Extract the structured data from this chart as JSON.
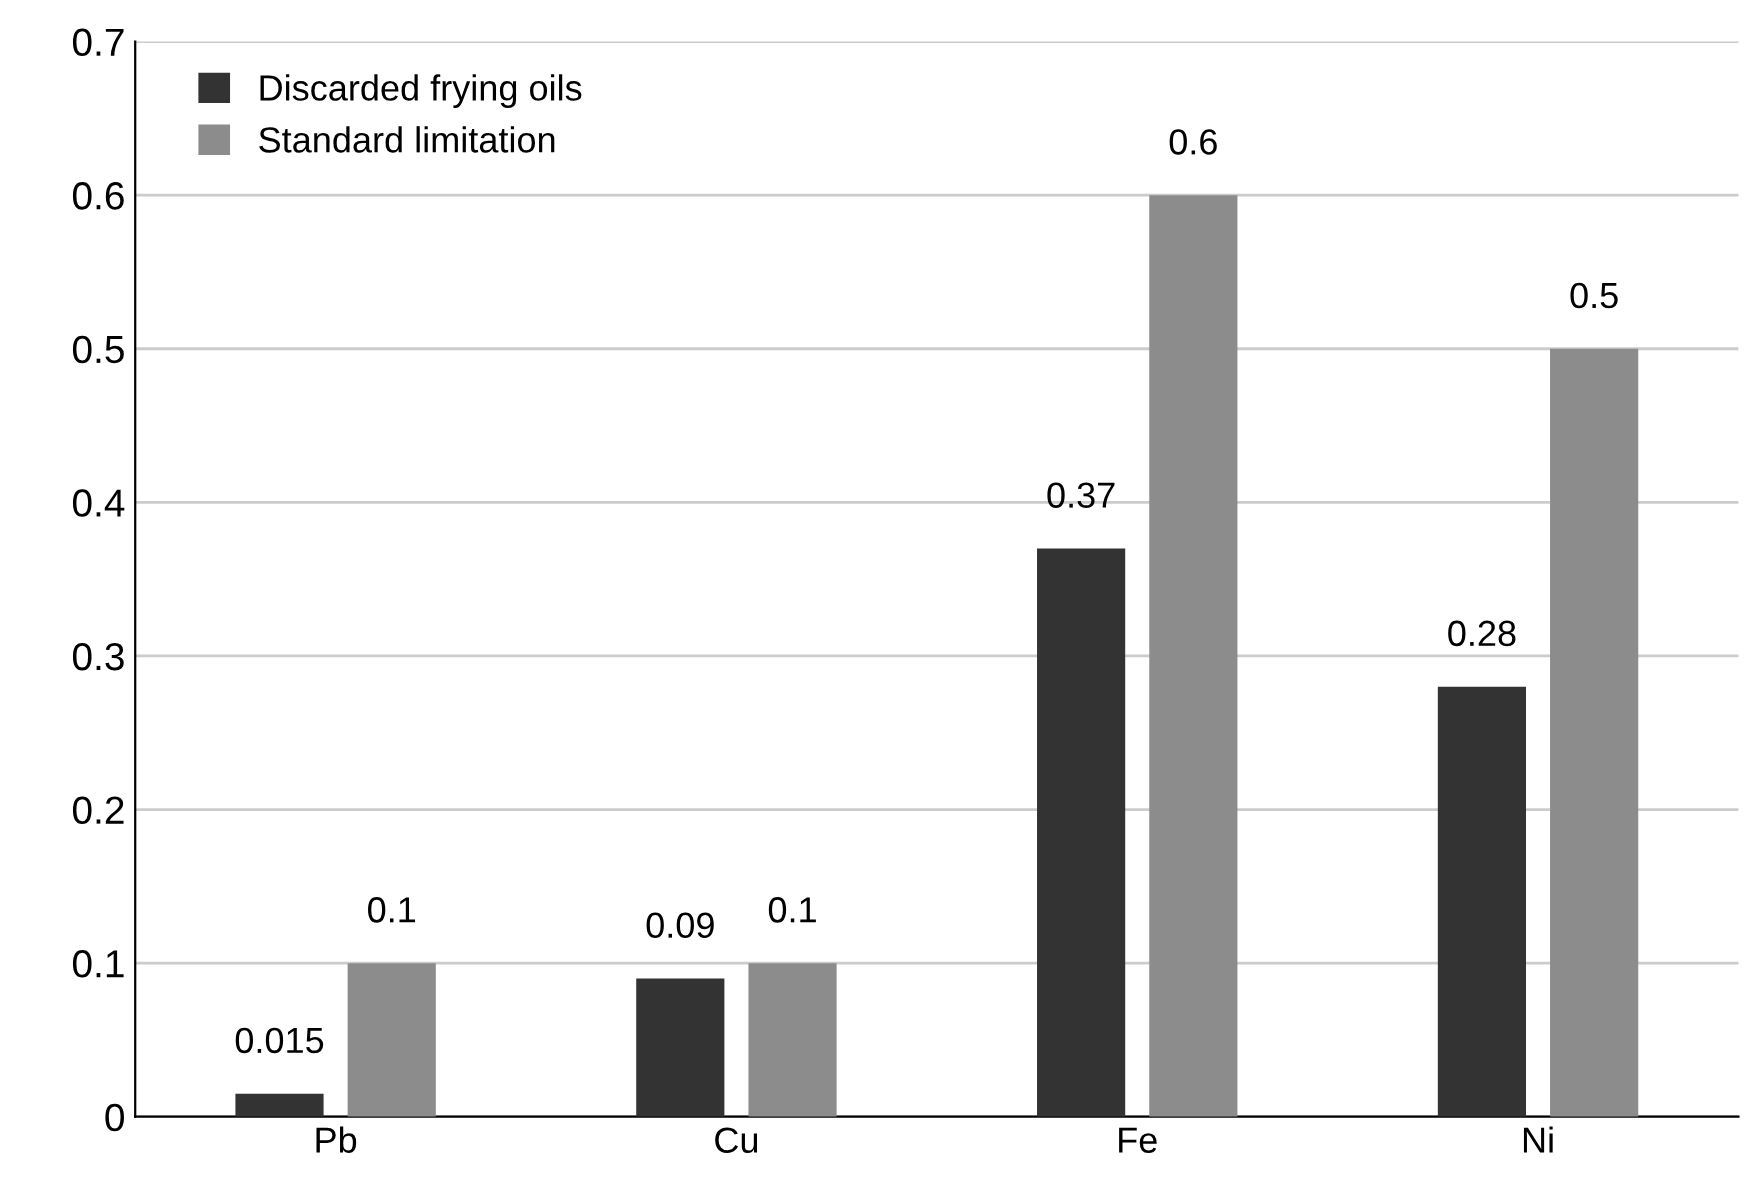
{
  "chart_data": {
    "type": "bar",
    "categories": [
      "Pb",
      "Cu",
      "Fe",
      "Ni"
    ],
    "series": [
      {
        "name": "Discarded frying oils",
        "color": "#333333",
        "values": [
          0.015,
          0.09,
          0.37,
          0.28
        ]
      },
      {
        "name": "Standard limitation",
        "color": "#8c8c8c",
        "values": [
          0.1,
          0.1,
          0.6,
          0.5
        ]
      }
    ],
    "ylim": [
      0,
      0.7
    ],
    "yticks": [
      0,
      0.1,
      0.2,
      0.3,
      0.4,
      0.5,
      0.6,
      0.7
    ],
    "grid": "y",
    "legend": "top left",
    "data_labels": true
  }
}
